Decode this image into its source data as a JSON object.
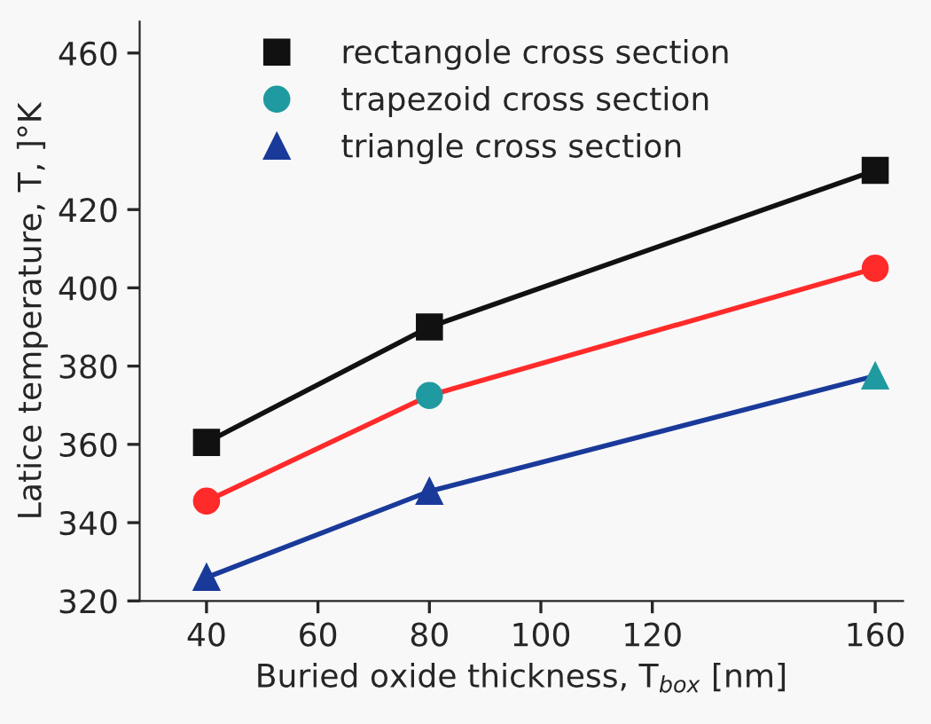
{
  "chart_data": {
    "type": "line",
    "x": [
      40,
      80,
      160
    ],
    "xlabel": "Buried oxide thickness, T$_{box}$ [nm]",
    "ylabel": "Latice temperature, T, ]°K",
    "series": [
      {
        "name": "rectangole cross section",
        "color": "#111111",
        "marker": "square",
        "colors": [
          "#111111",
          "#111111",
          "#111111"
        ],
        "values": [
          360.5,
          390,
          430
        ]
      },
      {
        "name": "trapezoid cross section",
        "color": "#ff2a2a",
        "marker": "circle",
        "colors": [
          "#ff2a2a",
          "#1f9aa0",
          "#ff2a2a"
        ],
        "values": [
          345.5,
          372.5,
          405
        ]
      },
      {
        "name": "triangle cross section",
        "color": "#1a3a9a",
        "marker": "triangle",
        "colors": [
          "#1a3a9a",
          "#1a3a9a",
          "#1f9aa0"
        ],
        "values": [
          326,
          348,
          377.5
        ]
      }
    ],
    "xlim": [
      28,
      165
    ],
    "xticks": [
      40,
      60,
      80,
      100,
      120,
      160
    ],
    "ylim": [
      320,
      468
    ],
    "yticks": [
      320,
      340,
      360,
      380,
      400,
      420,
      460
    ],
    "grid": false,
    "legend": "top left",
    "line_style": "solid"
  }
}
